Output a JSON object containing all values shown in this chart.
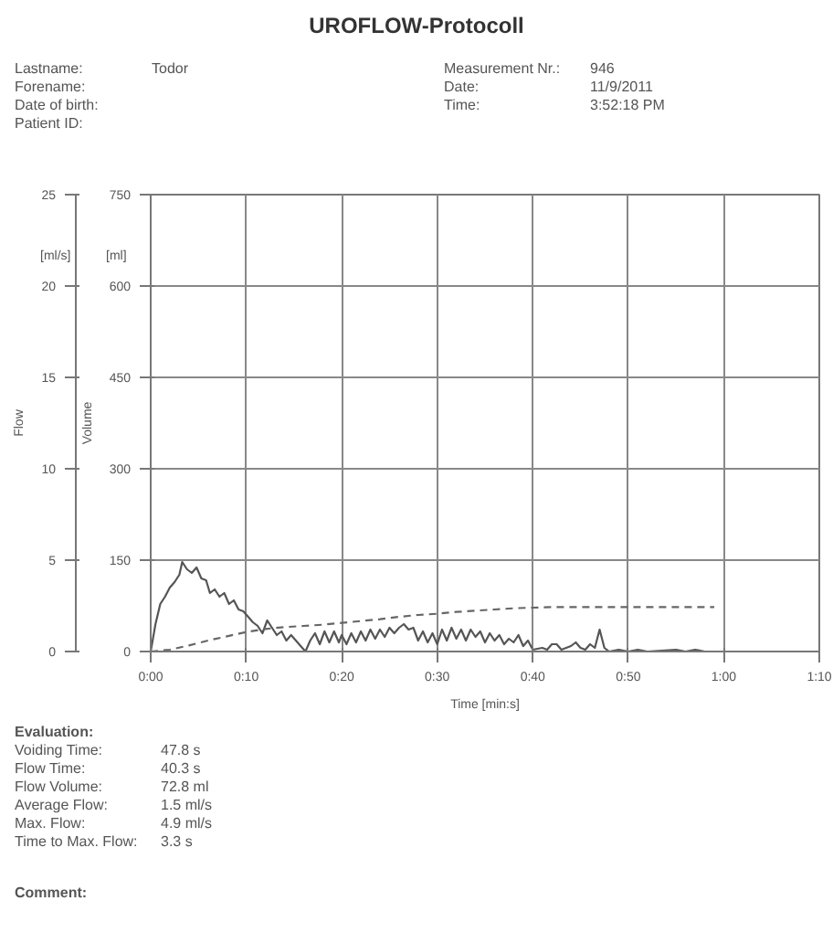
{
  "chart_data": {
    "type": "line",
    "title": "UROFLOW-Protocoll",
    "annotations": [
      "Lastname: Todor",
      "Forename:",
      "Date of birth:",
      "Patient ID:",
      "Measurement Nr.: 946",
      "Date: 11/9/2011",
      "Time: 3:52:18 PM",
      "[ml/s]",
      "[ml]",
      "Evaluation:",
      "Voiding Time: 47.8 s",
      "Flow Time: 40.3 s",
      "Flow Volume: 72.8 ml",
      "Average Flow: 1.5 ml/s",
      "Max. Flow: 4.9 ml/s",
      "Time to Max. Flow: 3.3 s",
      "Comment:"
    ],
    "xlabel": "Time [min:s]",
    "ylabel": "Flow",
    "y2label": "Volume",
    "xlim": [
      0,
      70
    ],
    "xticks": [
      {
        "value": 0,
        "label": "0:00"
      },
      {
        "value": 10,
        "label": "0:10"
      },
      {
        "value": 20,
        "label": "0:20"
      },
      {
        "value": 30,
        "label": "0:30"
      },
      {
        "value": 40,
        "label": "0:40"
      },
      {
        "value": 50,
        "label": "0:50"
      },
      {
        "value": 60,
        "label": "1:00"
      },
      {
        "value": 70,
        "label": "1:10"
      }
    ],
    "ylim": [
      0,
      25
    ],
    "yticks": [
      0,
      5,
      10,
      15,
      20,
      25
    ],
    "y2lim": [
      0,
      750
    ],
    "y2ticks": [
      0,
      150,
      300,
      450,
      600,
      750
    ],
    "grid": true,
    "marker": "none",
    "series": [
      {
        "color": "#555555",
        "line_style": "solid",
        "x": [
          0,
          0.5,
          1,
          1.5,
          2,
          2.5,
          3,
          3.3,
          3.8,
          4.3,
          4.8,
          5.3,
          5.8,
          6.2,
          6.7,
          7.2,
          7.7,
          8.2,
          8.7,
          9.2,
          9.7,
          10.2,
          10.7,
          11.2,
          11.7,
          12.2,
          12.7,
          13.2,
          13.7,
          14.2,
          14.7,
          15.2,
          15.7,
          16.2,
          16.7,
          17.2,
          17.7,
          18.2,
          18.7,
          19.2,
          19.7,
          20,
          20.5,
          21,
          21.5,
          22,
          22.5,
          23,
          23.5,
          24,
          24.5,
          25,
          25.5,
          26,
          26.5,
          27,
          27.5,
          28,
          28.5,
          29,
          29.5,
          30,
          30.5,
          31,
          31.5,
          32,
          32.5,
          33,
          33.5,
          34,
          34.5,
          35,
          35.5,
          36,
          36.5,
          37,
          37.5,
          38,
          38.5,
          39,
          39.5,
          40,
          41,
          41.5,
          42,
          42.5,
          43,
          44,
          44.5,
          45,
          45.5,
          46,
          46.5,
          47,
          47.5,
          48,
          49,
          50,
          51,
          52,
          55,
          56,
          57,
          58
        ],
        "values": [
          0,
          1.5,
          2.6,
          3.0,
          3.5,
          3.8,
          4.2,
          4.9,
          4.5,
          4.3,
          4.6,
          4.0,
          3.9,
          3.2,
          3.4,
          3.0,
          3.2,
          2.6,
          2.8,
          2.3,
          2.2,
          1.9,
          1.6,
          1.4,
          1.0,
          1.7,
          1.3,
          0.9,
          1.1,
          0.6,
          0.9,
          0.6,
          0.3,
          0.0,
          0.6,
          1.0,
          0.4,
          1.1,
          0.5,
          1.1,
          0.5,
          0.9,
          0.4,
          1.0,
          0.5,
          1.1,
          0.6,
          1.2,
          0.7,
          1.2,
          0.8,
          1.3,
          1.0,
          1.3,
          1.5,
          1.2,
          1.3,
          0.6,
          1.1,
          0.5,
          1.0,
          0.4,
          1.2,
          0.6,
          1.3,
          0.7,
          1.2,
          0.6,
          1.2,
          0.8,
          1.1,
          0.5,
          1.0,
          0.6,
          0.9,
          0.4,
          0.7,
          0.5,
          0.9,
          0.3,
          0.6,
          0.1,
          0.2,
          0.1,
          0.4,
          0.4,
          0.1,
          0.3,
          0.5,
          0.2,
          0.1,
          0.4,
          0.2,
          1.2,
          0.2,
          0.0,
          0.1,
          0.0,
          0.1,
          0.0,
          0.1,
          0.0,
          0.1,
          0.0
        ]
      },
      {
        "color": "#666666",
        "line_style": "dashed",
        "axis": "y2",
        "x": [
          0,
          2,
          4,
          6,
          8,
          10,
          12,
          14,
          16,
          18,
          20,
          22,
          24,
          26,
          28,
          30,
          32,
          34,
          36,
          38,
          40,
          42,
          45,
          59
        ],
        "values": [
          0,
          3,
          10,
          18,
          25,
          32,
          37,
          40,
          42,
          44,
          47,
          50,
          53,
          57,
          60,
          62,
          65,
          67,
          69,
          71,
          72,
          73,
          73,
          73
        ]
      }
    ]
  }
}
